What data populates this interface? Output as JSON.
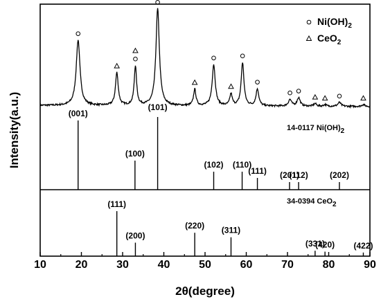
{
  "chart_data": {
    "type": "line",
    "xlabel": "2θ(degree)",
    "ylabel": "Intensity(a.u.)",
    "xlim": [
      10,
      90
    ],
    "x_ticks": [
      "10",
      "20",
      "30",
      "40",
      "50",
      "60",
      "70",
      "80",
      "90"
    ],
    "legend": [
      {
        "marker": "circle",
        "label": "Ni(OH)",
        "sub": "2"
      },
      {
        "marker": "triangle",
        "label": "CeO",
        "sub": "2"
      }
    ],
    "pattern": {
      "baseline": 6,
      "slope": 0.02,
      "noise": 1.3,
      "peaks": [
        {
          "x": 19.2,
          "h": 100,
          "w": 0.55
        },
        {
          "x": 28.6,
          "h": 50,
          "w": 0.4
        },
        {
          "x": 33.1,
          "h": 60,
          "w": 0.35
        },
        {
          "x": 38.5,
          "h": 148,
          "w": 0.5
        },
        {
          "x": 47.5,
          "h": 25,
          "w": 0.35
        },
        {
          "x": 52.1,
          "h": 63,
          "w": 0.45
        },
        {
          "x": 56.3,
          "h": 18,
          "w": 0.35
        },
        {
          "x": 59.1,
          "h": 66,
          "w": 0.4
        },
        {
          "x": 62.7,
          "h": 26,
          "w": 0.4
        },
        {
          "x": 70.6,
          "h": 10,
          "w": 0.45
        },
        {
          "x": 72.7,
          "h": 13,
          "w": 0.45
        },
        {
          "x": 76.7,
          "h": 4,
          "w": 0.4
        },
        {
          "x": 79.1,
          "h": 2.5,
          "w": 0.4
        },
        {
          "x": 82.6,
          "h": 6,
          "w": 0.45
        },
        {
          "x": 88.4,
          "h": 3,
          "w": 0.4
        }
      ],
      "markers": [
        {
          "x": 19.2,
          "type": "circle"
        },
        {
          "x": 28.6,
          "type": "triangle"
        },
        {
          "x": 33.1,
          "type": "circle"
        },
        {
          "x": 33.1,
          "type": "triangle"
        },
        {
          "x": 38.5,
          "type": "circle"
        },
        {
          "x": 47.5,
          "type": "triangle"
        },
        {
          "x": 52.1,
          "type": "circle"
        },
        {
          "x": 56.3,
          "type": "triangle"
        },
        {
          "x": 59.1,
          "type": "circle"
        },
        {
          "x": 62.7,
          "type": "circle"
        },
        {
          "x": 70.6,
          "type": "circle"
        },
        {
          "x": 72.7,
          "type": "circle"
        },
        {
          "x": 76.7,
          "type": "triangle"
        },
        {
          "x": 79.1,
          "type": "triangle"
        },
        {
          "x": 82.6,
          "type": "circle"
        },
        {
          "x": 88.4,
          "type": "triangle"
        }
      ]
    },
    "references": [
      {
        "card": "14-0117 Ni(OH)",
        "card_sub": "2",
        "lines": [
          {
            "x": 19.2,
            "intensity": 100,
            "hkl": "(001)"
          },
          {
            "x": 33.0,
            "intensity": 42,
            "hkl": "(100)"
          },
          {
            "x": 38.5,
            "intensity": 105,
            "hkl": "(101)"
          },
          {
            "x": 52.1,
            "intensity": 26,
            "hkl": "(102)"
          },
          {
            "x": 59.0,
            "intensity": 26,
            "hkl": "(110)"
          },
          {
            "x": 62.7,
            "intensity": 17,
            "hkl": "(111)"
          },
          {
            "x": 70.5,
            "intensity": 11,
            "hkl": "(201)"
          },
          {
            "x": 72.7,
            "intensity": 11,
            "hkl": "(112)"
          },
          {
            "x": 82.6,
            "intensity": 11,
            "hkl": "(202)"
          }
        ]
      },
      {
        "card": "34-0394 CeO",
        "card_sub": "2",
        "lines": [
          {
            "x": 28.6,
            "intensity": 100,
            "hkl": "(111)"
          },
          {
            "x": 33.1,
            "intensity": 30,
            "hkl": "(200)"
          },
          {
            "x": 47.5,
            "intensity": 52,
            "hkl": "(220)"
          },
          {
            "x": 56.3,
            "intensity": 42,
            "hkl": "(311)"
          },
          {
            "x": 76.7,
            "intensity": 12,
            "hkl": "(331)"
          },
          {
            "x": 79.1,
            "intensity": 10,
            "hkl": "(420)"
          },
          {
            "x": 88.4,
            "intensity": 8,
            "hkl": "(422)"
          }
        ]
      }
    ]
  }
}
